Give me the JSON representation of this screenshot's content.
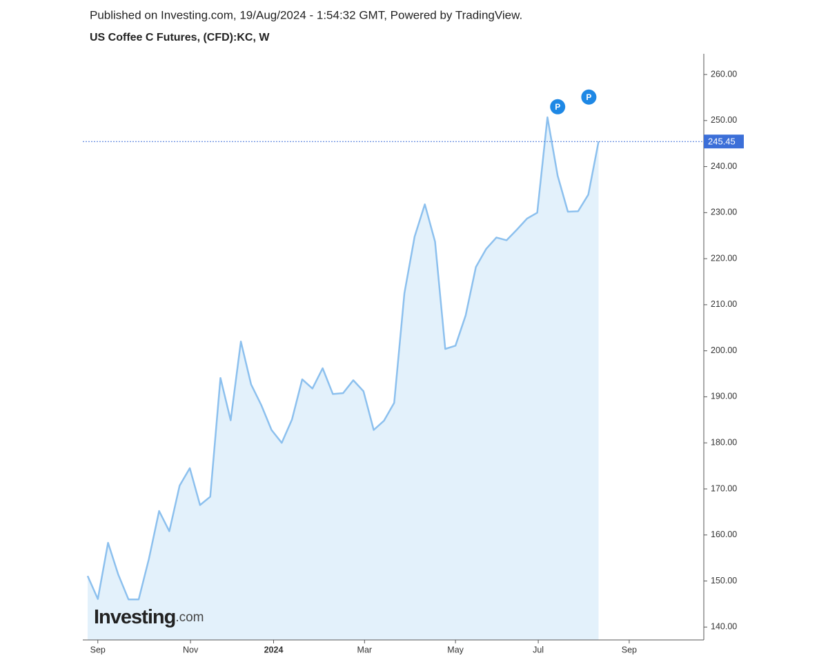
{
  "header": {
    "published": "Published on Investing.com, 19/Aug/2024 - 1:54:32 GMT, Powered by TradingView."
  },
  "chart_data": {
    "type": "area",
    "title": "US Coffee C Futures, (CFD):KC, W",
    "x": [
      0,
      1,
      2,
      3,
      4,
      5,
      6,
      7,
      8,
      9,
      10,
      11,
      12,
      13,
      14,
      15,
      16,
      17,
      18,
      19,
      20,
      21,
      22,
      23,
      24,
      25,
      26,
      27,
      28,
      29,
      30,
      31,
      32,
      33,
      34,
      35,
      36,
      37,
      38,
      39,
      40,
      41,
      42,
      43,
      44,
      45,
      46,
      47,
      48,
      49,
      50
    ],
    "series": [
      {
        "name": "KC",
        "color": "#8cc0ee",
        "fill": "#e3f1fb",
        "values": [
          151.1,
          146.1,
          158.3,
          151.4,
          146.0,
          146.0,
          154.8,
          165.2,
          160.8,
          170.7,
          174.5,
          166.5,
          168.3,
          194.1,
          184.9,
          202.0,
          192.7,
          188.2,
          182.8,
          180.0,
          185.1,
          193.8,
          191.8,
          196.2,
          190.6,
          190.8,
          193.6,
          191.2,
          182.8,
          184.8,
          188.7,
          212.5,
          224.8,
          231.8,
          223.7,
          200.4,
          201.1,
          207.7,
          218.2,
          222.1,
          224.6,
          224.0,
          226.3,
          228.7,
          230.0,
          250.7,
          238.0,
          230.2,
          230.3,
          233.9,
          245.45
        ]
      }
    ],
    "xlim": [
      -0.47,
      60.3
    ],
    "xticks": [
      {
        "value": 1.0,
        "label": "Sep"
      },
      {
        "value": 10.07,
        "label": "Nov"
      },
      {
        "value": 18.2,
        "label": "2024"
      },
      {
        "value": 27.1,
        "label": "Mar"
      },
      {
        "value": 36.0,
        "label": "May"
      },
      {
        "value": 44.1,
        "label": "Jul"
      },
      {
        "value": 53.0,
        "label": "Sep"
      }
    ],
    "ylim": [
      137.2,
      264.5
    ],
    "yticks": [
      {
        "value": 140,
        "label": "140.00"
      },
      {
        "value": 150,
        "label": "150.00"
      },
      {
        "value": 160,
        "label": "160.00"
      },
      {
        "value": 170,
        "label": "170.00"
      },
      {
        "value": 180,
        "label": "180.00"
      },
      {
        "value": 190,
        "label": "190.00"
      },
      {
        "value": 200,
        "label": "200.00"
      },
      {
        "value": 210,
        "label": "210.00"
      },
      {
        "value": 220,
        "label": "220.00"
      },
      {
        "value": 230,
        "label": "230.00"
      },
      {
        "value": 240,
        "label": "240.00"
      },
      {
        "value": 250,
        "label": "250.00"
      },
      {
        "value": 260,
        "label": "260.00"
      }
    ],
    "last_price": {
      "value": 245.45,
      "label": "245.45",
      "color": "#3c6fd8"
    },
    "annotations": [
      {
        "text": "P",
        "x": 46.0,
        "y": 253.0
      },
      {
        "text": "P",
        "x": 49.05,
        "y": 255.1
      }
    ],
    "logo": {
      "name": "Investing",
      "suffix": ".com"
    }
  }
}
